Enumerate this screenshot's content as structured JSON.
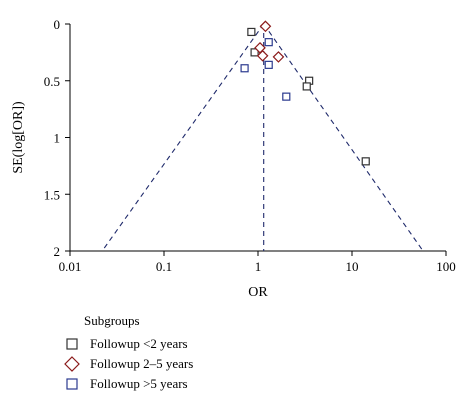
{
  "chart_data": {
    "type": "scatter",
    "subtype": "funnel-plot",
    "title": "",
    "xlabel": "OR",
    "ylabel": "SE(log[OR])",
    "x_scale": "log",
    "xlim": [
      0.01,
      100
    ],
    "ylim": [
      0,
      2
    ],
    "y_reversed": true,
    "x_ticks": [
      "0.01",
      "0.1",
      "1",
      "10",
      "100"
    ],
    "x_tick_values": [
      0.01,
      0.1,
      1,
      10,
      100
    ],
    "y_ticks": [
      "0",
      "0.5",
      "1",
      "1.5",
      "2"
    ],
    "y_tick_values": [
      0,
      0.5,
      1,
      1.5,
      2
    ],
    "grid": false,
    "pooled_or": 1.15,
    "funnel_base_left_or": 0.022,
    "funnel_base_right_or": 57,
    "legend": {
      "position": "bottom-left",
      "title": "Subgroups"
    },
    "series": [
      {
        "name": "Followup <2 years",
        "marker": "square",
        "color": "#333333",
        "points": [
          {
            "x": 0.85,
            "y": 0.07
          },
          {
            "x": 0.92,
            "y": 0.25
          },
          {
            "x": 3.5,
            "y": 0.5
          },
          {
            "x": 3.3,
            "y": 0.55
          },
          {
            "x": 14,
            "y": 1.21
          }
        ]
      },
      {
        "name": "Followup 2–5 years",
        "marker": "diamond",
        "color": "#8b1a1a",
        "points": [
          {
            "x": 1.2,
            "y": 0.02
          },
          {
            "x": 1.05,
            "y": 0.21
          },
          {
            "x": 1.12,
            "y": 0.28
          },
          {
            "x": 1.65,
            "y": 0.29
          }
        ]
      },
      {
        "name": "Followup >5 years",
        "marker": "square",
        "color": "#2b3a8f",
        "points": [
          {
            "x": 1.3,
            "y": 0.16
          },
          {
            "x": 0.72,
            "y": 0.39
          },
          {
            "x": 1.3,
            "y": 0.36
          },
          {
            "x": 2.0,
            "y": 0.64
          }
        ]
      }
    ]
  }
}
